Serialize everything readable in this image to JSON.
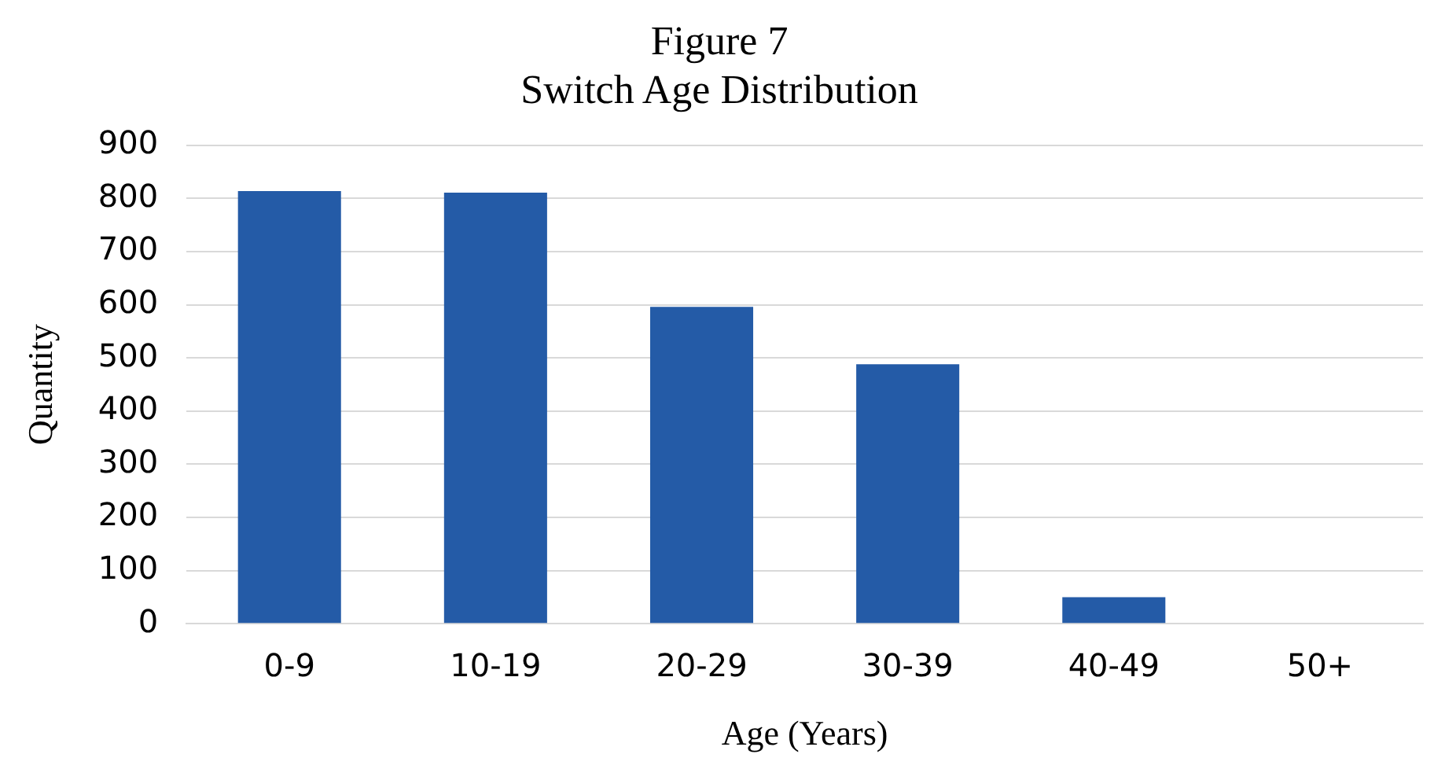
{
  "chart_data": {
    "type": "bar",
    "title": "Figure 7",
    "subtitle": "Switch Age Distribution",
    "xlabel": "Age (Years)",
    "ylabel": "Quantity",
    "categories": [
      "0-9",
      "10-19",
      "20-29",
      "30-39",
      "40-49",
      "50+"
    ],
    "values": [
      814,
      811,
      596,
      488,
      50,
      0
    ],
    "color": "#245ba7",
    "ylim": [
      0,
      900
    ],
    "yticks": [
      0,
      100,
      200,
      300,
      400,
      500,
      600,
      700,
      800,
      900
    ],
    "grid": "y",
    "legend": false
  }
}
